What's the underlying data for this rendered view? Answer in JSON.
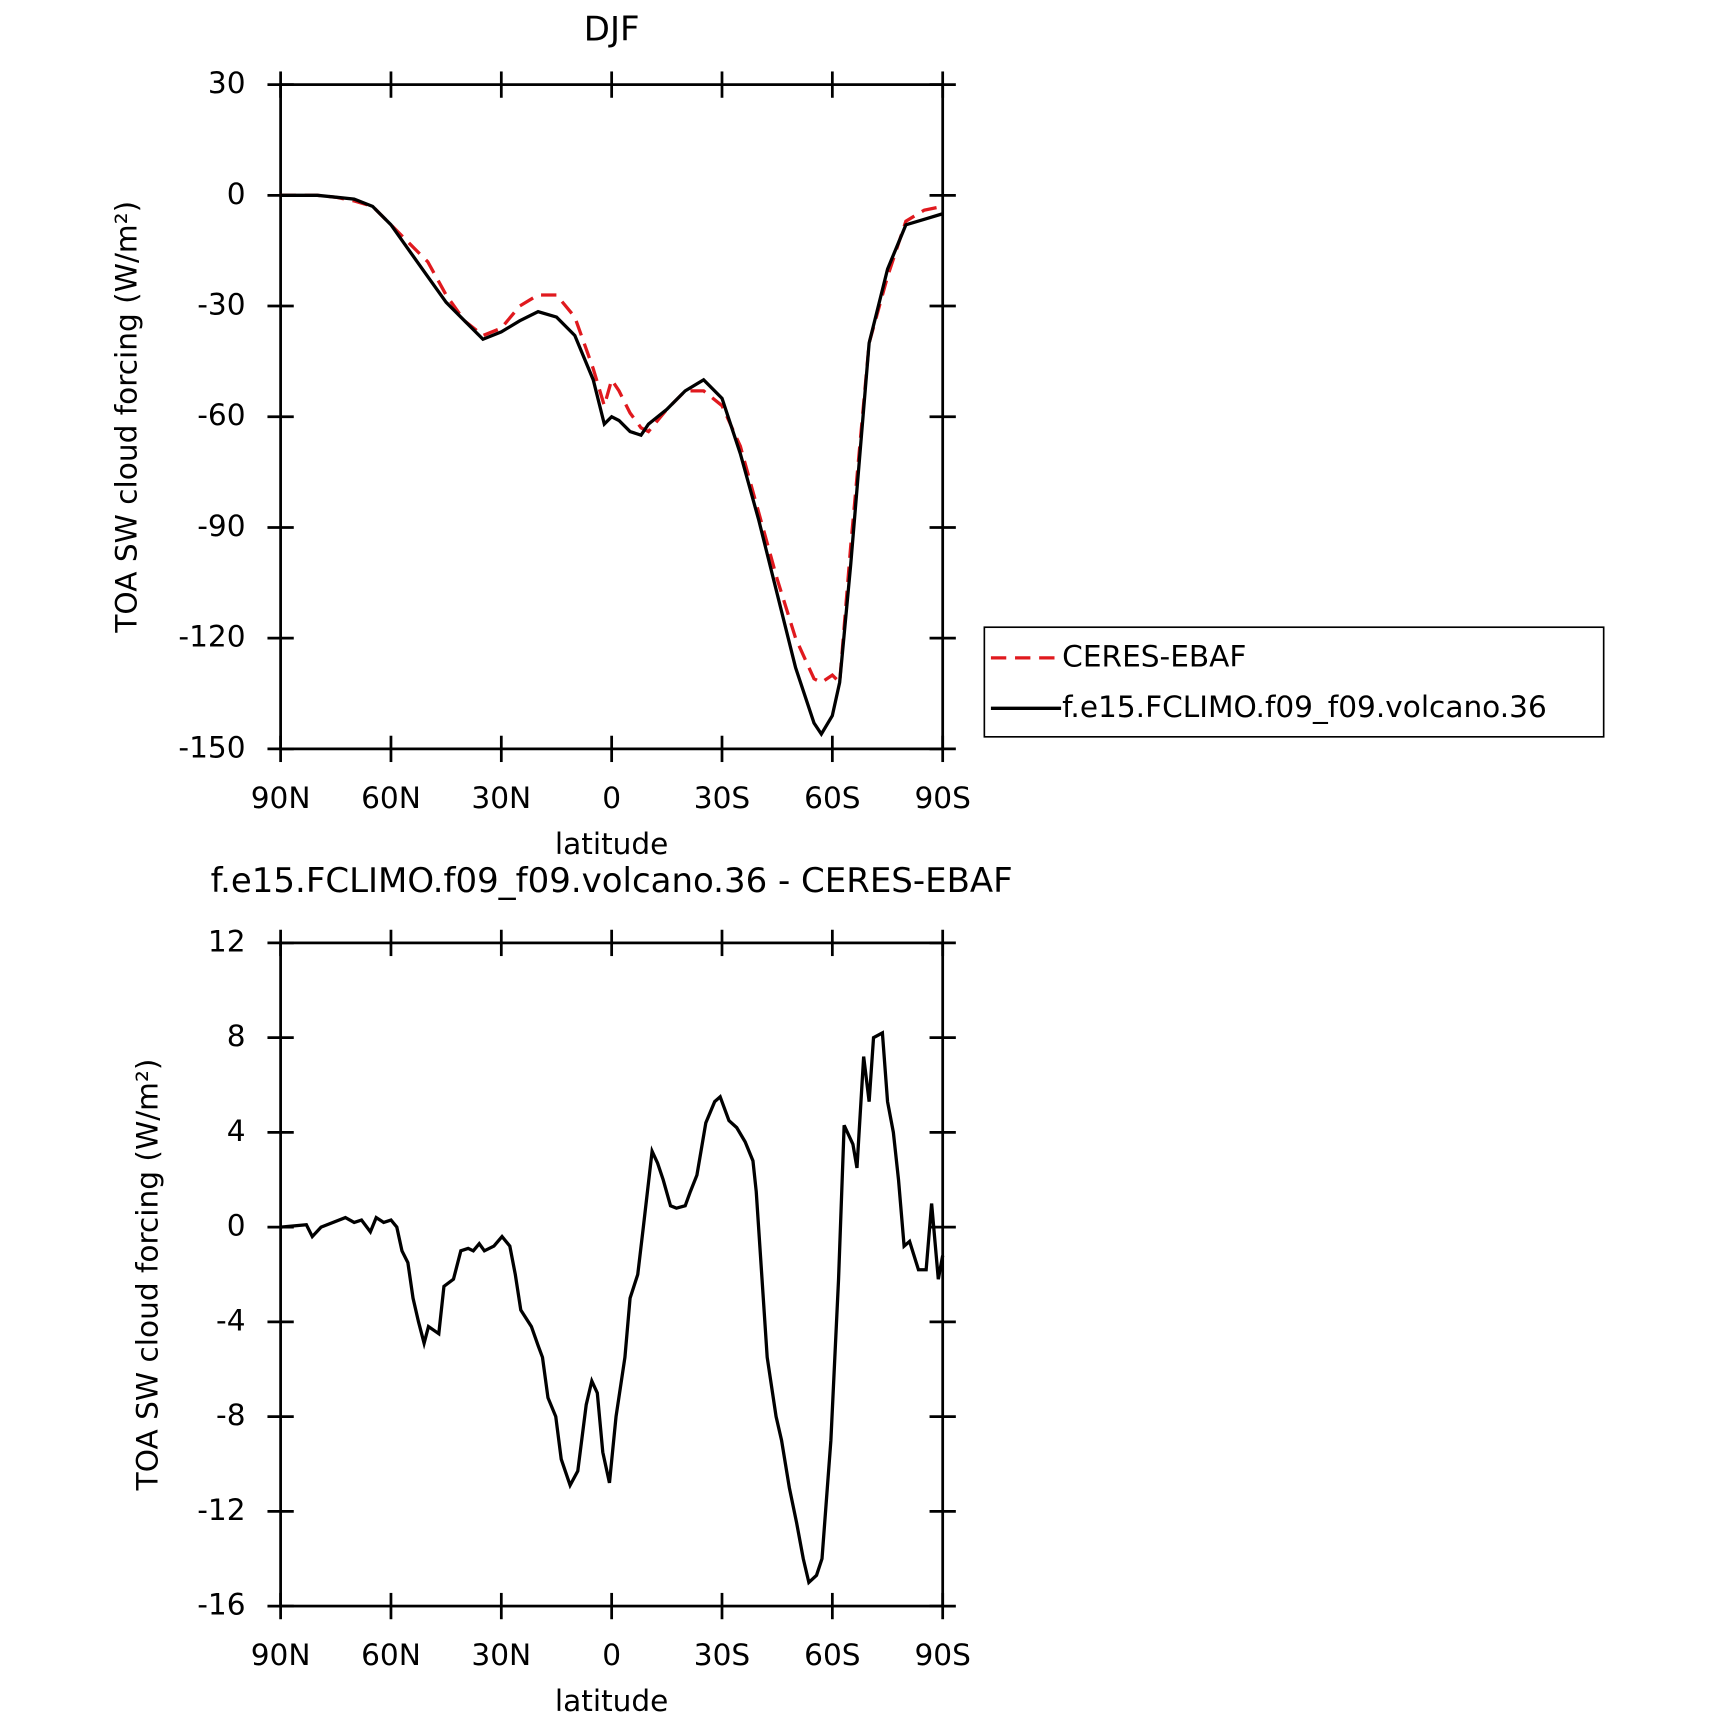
{
  "chart_data": [
    {
      "type": "line",
      "title": "DJF",
      "xlabel": "latitude",
      "ylabel": "TOA SW cloud forcing (W/m²)",
      "x": [
        90,
        85,
        80,
        75,
        70,
        65,
        60,
        55,
        50,
        45,
        40,
        35,
        30,
        25,
        20,
        15,
        10,
        5,
        2,
        0,
        -2,
        -5,
        -8,
        -10,
        -15,
        -20,
        -25,
        -30,
        -35,
        -40,
        -45,
        -50,
        -55,
        -57,
        -60,
        -62,
        -65,
        -70,
        -75,
        -80,
        -85,
        -90
      ],
      "series": [
        {
          "name": "CERES-EBAF",
          "color": "#e0191e",
          "dash": true,
          "values": [
            0,
            0,
            0,
            -0.5,
            -1.5,
            -3,
            -8,
            -13,
            -18,
            -27,
            -34,
            -38,
            -36,
            -30,
            -27,
            -27,
            -33,
            -47,
            -57,
            -50,
            -53,
            -59,
            -63,
            -64,
            -58,
            -53,
            -53,
            -57,
            -68,
            -86,
            -104,
            -120,
            -131,
            -132,
            -130,
            -132,
            -95,
            -40,
            -22,
            -7,
            -4,
            -3
          ]
        },
        {
          "name": "f.e15.FCLIMO.f09_f09.volcano.36",
          "color": "#000000",
          "dash": false,
          "values": [
            0,
            0,
            0,
            -0.5,
            -1,
            -3,
            -8,
            -15,
            -22,
            -29,
            -34,
            -39,
            -37,
            -34,
            -31.5,
            -33,
            -38,
            -50,
            -62,
            -60,
            -61,
            -64,
            -65,
            -62,
            -58,
            -53,
            -50,
            -55,
            -70,
            -88,
            -108,
            -128,
            -143,
            -146,
            -141,
            -132,
            -100,
            -40,
            -20,
            -8,
            -6.5,
            -5
          ]
        }
      ],
      "xlim": [
        90,
        -90
      ],
      "xticks": [
        {
          "value": 90,
          "label": "90N"
        },
        {
          "value": 60,
          "label": "60N"
        },
        {
          "value": 30,
          "label": "30N"
        },
        0,
        {
          "value": -30,
          "label": "30S"
        },
        {
          "value": -60,
          "label": "60S"
        },
        {
          "value": -90,
          "label": "90S"
        }
      ],
      "ylim": [
        -150,
        30
      ],
      "yticks": [
        -150,
        -120,
        -90,
        -60,
        -30,
        0,
        30
      ],
      "legend": "right"
    },
    {
      "type": "line",
      "title": "f.e15.FCLIMO.f09_f09.volcano.36 - CERES-EBAF",
      "xlabel": "latitude",
      "ylabel": "TOA SW cloud forcing (W/m²)",
      "x": [
        90,
        83,
        81.4,
        79,
        72.4,
        70,
        68,
        65.6,
        64,
        62,
        60,
        58.4,
        57,
        55.4,
        54,
        52.5,
        51,
        49.8,
        47,
        45.6,
        43,
        41,
        39,
        37.6,
        36,
        34.6,
        32,
        29.8,
        27.7,
        26.2,
        24.7,
        21.8,
        20,
        18.8,
        17.3,
        15.2,
        13.7,
        11.3,
        9.2,
        6.9,
        5.4,
        3.9,
        2.4,
        0.6,
        -1.2,
        -3.6,
        -5,
        -7.1,
        -8.6,
        -11,
        -12.5,
        -14,
        -16,
        -17.6,
        -20,
        -21.4,
        -23.2,
        -25.6,
        -28,
        -29.5,
        -31.9,
        -34,
        -36.3,
        -38.4,
        -39.3,
        -42.3,
        -44.7,
        -46.2,
        -48.3,
        -50.3,
        -52.1,
        -53.6,
        -55.7,
        -57.2,
        -59.6,
        -61.7,
        -63.2,
        -65.6,
        -66.7,
        -68.5,
        -70,
        -71.2,
        -73.6,
        -75,
        -76.6,
        -78,
        -79.5,
        -81,
        -83.4,
        -85.5,
        -87,
        -88.8,
        -90
      ],
      "series": [
        {
          "name": "f.e15.FCLIMO.f09_f09.volcano.36 - CERES-EBAF",
          "color": "#000000",
          "dash": false,
          "values": [
            0,
            0.1,
            -0.4,
            0,
            0.4,
            0.2,
            0.3,
            -0.2,
            0.4,
            0.2,
            0.3,
            0,
            -1,
            -1.5,
            -3,
            -4,
            -4.9,
            -4.2,
            -4.5,
            -2.5,
            -2.2,
            -1,
            -0.9,
            -1,
            -0.7,
            -1,
            -0.8,
            -0.4,
            -0.8,
            -2,
            -3.5,
            -4.2,
            -5,
            -5.5,
            -7.2,
            -8,
            -9.8,
            -10.9,
            -10.3,
            -7.5,
            -6.5,
            -7,
            -9.5,
            -10.8,
            -8,
            -5.5,
            -3,
            -2,
            0,
            3.2,
            2.7,
            2,
            0.9,
            0.8,
            0.9,
            1.5,
            2.2,
            4.4,
            5.3,
            5.5,
            4.5,
            4.2,
            3.6,
            2.8,
            1.5,
            -5.5,
            -8,
            -9,
            -11,
            -12.5,
            -14,
            -15,
            -14.7,
            -14,
            -9,
            -2.2,
            4.3,
            3.5,
            2.5,
            7.2,
            5.3,
            8,
            8.2,
            5.3,
            4,
            2,
            -0.8,
            -0.6,
            -1.8,
            -1.8,
            1,
            -2.2,
            -1.2
          ]
        }
      ],
      "xlim": [
        90,
        -90
      ],
      "xticks": [
        {
          "value": 90,
          "label": "90N"
        },
        {
          "value": 60,
          "label": "60N"
        },
        {
          "value": 30,
          "label": "30N"
        },
        0,
        {
          "value": -30,
          "label": "30S"
        },
        {
          "value": -60,
          "label": "60S"
        },
        {
          "value": -90,
          "label": "90S"
        }
      ],
      "ylim": [
        -16,
        12
      ],
      "yticks": [
        -16,
        -12,
        -8,
        -4,
        0,
        4,
        8,
        12
      ]
    }
  ]
}
